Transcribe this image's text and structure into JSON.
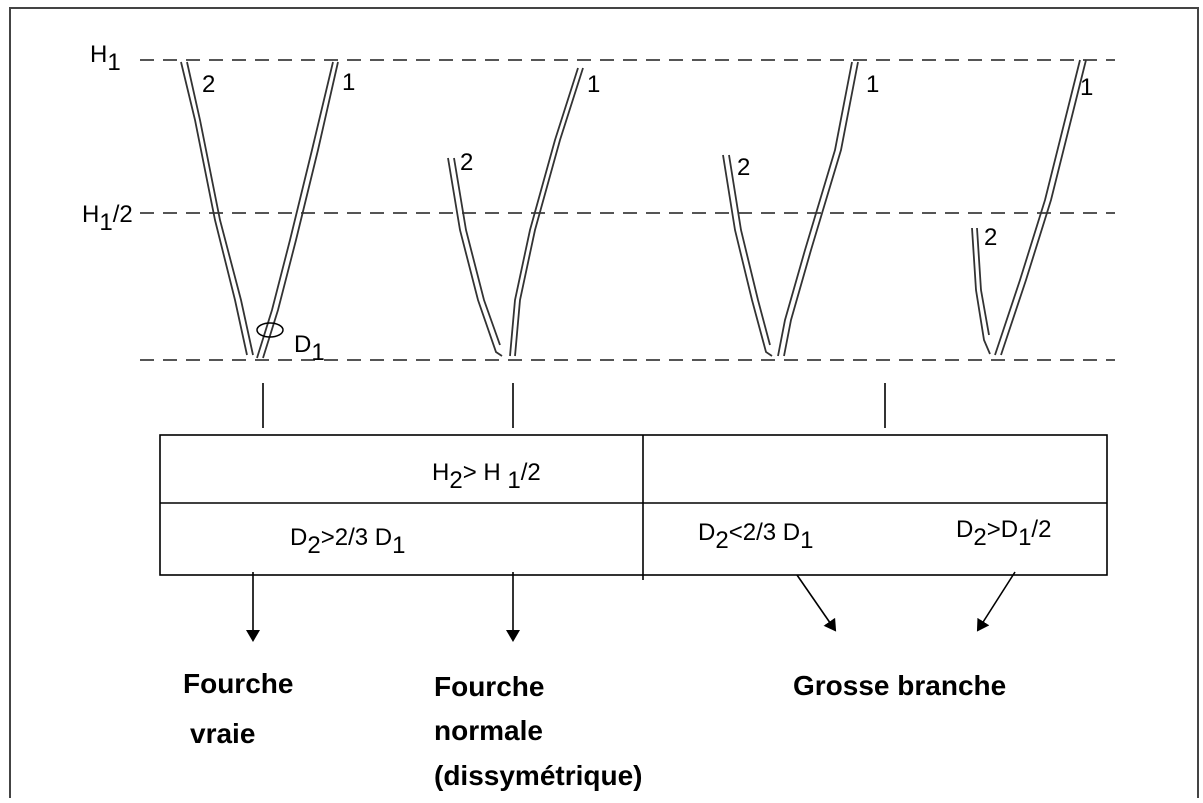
{
  "levels": {
    "h1": [
      {
        "text": "H"
      },
      {
        "text": "1",
        "sub": true
      }
    ],
    "h1_half": [
      {
        "text": "H"
      },
      {
        "text": "1",
        "sub": true
      },
      {
        "text": "/2"
      }
    ]
  },
  "d1": [
    {
      "text": "D"
    },
    {
      "text": "1",
      "sub": true
    }
  ],
  "forks": [
    {
      "branch_1": "1",
      "branch_2": "2"
    },
    {
      "branch_1": "1",
      "branch_2": "2"
    },
    {
      "branch_1": "1",
      "branch_2": "2"
    },
    {
      "branch_1": "1",
      "branch_2": "2"
    }
  ],
  "table": {
    "row_1": {
      "left": [
        {
          "text": "H"
        },
        {
          "text": "2",
          "sub": true
        },
        {
          "text": "> H "
        },
        {
          "text": "1",
          "sub": true
        },
        {
          "text": "/2"
        }
      ]
    },
    "row_2": {
      "left": [
        {
          "text": "D"
        },
        {
          "text": "2",
          "sub": true
        },
        {
          "text": ">2/3 D"
        },
        {
          "text": "1",
          "sub": true
        }
      ],
      "middle": [
        {
          "text": "D"
        },
        {
          "text": "2",
          "sub": true
        },
        {
          "text": "<2/3 D"
        },
        {
          "text": "1",
          "sub": true
        }
      ],
      "right": [
        {
          "text": "D"
        },
        {
          "text": "2",
          "sub": true
        },
        {
          "text": ">D"
        },
        {
          "text": "1",
          "sub": true
        },
        {
          "text": "/2"
        }
      ]
    }
  },
  "outcomes": [
    {
      "lines": [
        "Fourche",
        "vraie"
      ]
    },
    {
      "lines": [
        "Fourche",
        "normale",
        "(dissymétrique)"
      ]
    },
    {
      "lines": [
        "Grosse branche"
      ]
    }
  ]
}
